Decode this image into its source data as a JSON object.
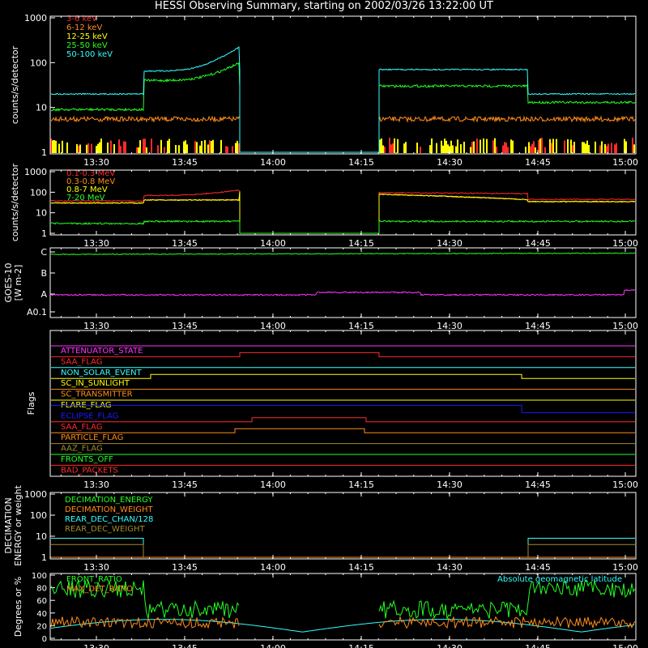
{
  "title": "HESSI Observing Summary, starting on 2002/03/26 13:22:00 UT",
  "time_ticks": [
    "13:30",
    "13:45",
    "14:00",
    "14:15",
    "14:30",
    "14:45",
    "15:00"
  ],
  "colors": {
    "red": "#ff2a2a",
    "orange": "#ff8c1a",
    "yellow": "#ffff00",
    "green": "#22ff22",
    "cyan": "#33ffff",
    "magenta": "#ff33ff",
    "blue": "#1a1aff",
    "olive": "#a08c28",
    "axis": "#ffffff",
    "background": "#000000"
  },
  "chart_data": [
    {
      "type": "line",
      "ylabel": "counts/s/detector",
      "yscale": "log",
      "ylim": [
        1,
        1000
      ],
      "yticks": [
        "1",
        "10",
        "100",
        "1000"
      ],
      "series": [
        {
          "name": "3-6 keV",
          "color": "#ff2a2a"
        },
        {
          "name": "6-12 keV",
          "color": "#ff8c1a"
        },
        {
          "name": "12-25 keV",
          "color": "#ffff00"
        },
        {
          "name": "25-50 keV",
          "color": "#22ff22"
        },
        {
          "name": "50-100 keV",
          "color": "#33ffff"
        }
      ]
    },
    {
      "type": "line",
      "ylabel": "counts/s/detector",
      "yscale": "log",
      "ylim": [
        1,
        1000
      ],
      "yticks": [
        "1",
        "10",
        "100",
        "1000"
      ],
      "series": [
        {
          "name": "0.1-0.3 MeV",
          "color": "#ff2a2a"
        },
        {
          "name": "0.3-0.8 MeV",
          "color": "#ff8c1a"
        },
        {
          "name": "0.8-7 MeV",
          "color": "#ffff00"
        },
        {
          "name": "7-20 MeV",
          "color": "#22ff22"
        }
      ]
    },
    {
      "type": "line",
      "ylabel": "GOES-10",
      "ylabel2": "[W m-2]",
      "yticks": [
        "A0.1",
        "A",
        "B",
        "C"
      ],
      "series": [
        {
          "color": "#22ff22",
          "level": 3.9
        },
        {
          "color": "#ff33ff",
          "level": 1.2
        }
      ]
    },
    {
      "type": "line",
      "ylabel": "Flags",
      "flags": [
        {
          "name": "ATTENUATOR_STATE",
          "color": "#ff33ff"
        },
        {
          "name": "SAA_FLAG",
          "color": "#ff2a2a"
        },
        {
          "name": "NON_SOLAR_EVENT",
          "color": "#33ffff"
        },
        {
          "name": "SC_IN_SUNLIGHT",
          "color": "#ffff00"
        },
        {
          "name": "SC_TRANSMITTER",
          "color": "#ff8c1a"
        },
        {
          "name": "FLARE_FLAG",
          "color": "#ffff00"
        },
        {
          "name": "ECLIPSE_FLAG",
          "color": "#1a1aff"
        },
        {
          "name": "SAA_FLAG",
          "color": "#ff2a2a"
        },
        {
          "name": "PARTICLE_FLAG",
          "color": "#ff8c1a"
        },
        {
          "name": "AAZ_FLAG",
          "color": "#a08c28"
        },
        {
          "name": "FRONTS_OFF",
          "color": "#22ff22"
        },
        {
          "name": "BAD_PACKETS",
          "color": "#ff2a2a"
        }
      ]
    },
    {
      "type": "line",
      "ylabel": "DECIMATION",
      "ylabel2": "ENERGY or weight",
      "yscale": "log",
      "ylim": [
        1,
        1000
      ],
      "yticks": [
        "1",
        "10",
        "100",
        "1000"
      ],
      "series": [
        {
          "name": "DECIMATION_ENERGY",
          "color": "#22ff22"
        },
        {
          "name": "DECIMATION_WEIGHT",
          "color": "#ff8c1a"
        },
        {
          "name": "REAR_DEC_CHAN/128",
          "color": "#33ffff"
        },
        {
          "name": "REAR_DEC_WEIGHT",
          "color": "#a08c28"
        }
      ]
    },
    {
      "type": "line",
      "ylabel": "Degrees or %",
      "ylim": [
        0,
        100
      ],
      "yticks": [
        "0",
        "20",
        "40",
        "60",
        "80",
        "100"
      ],
      "series": [
        {
          "name": "FRONT_RATIO",
          "color": "#22ff22"
        },
        {
          "name": "MAX_DET_RATIO",
          "color": "#ff8c1a"
        },
        {
          "name": "Absolute geomagnetic latitude",
          "color": "#33ffff"
        }
      ]
    }
  ]
}
